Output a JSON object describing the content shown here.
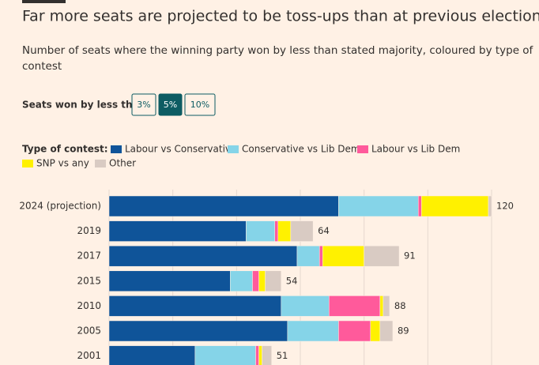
{
  "chart_data": {
    "type": "stacked-bar-horizontal",
    "title": "Far more seats are projected to be toss-ups than at previous elections",
    "subtitle_lines": [
      "Number of seats where the winning party won by less than stated majority, coloured by type of",
      "contest"
    ],
    "control": {
      "label": "Seats won by less than:",
      "options": [
        "3%",
        "5%",
        "10%"
      ],
      "selected": 1
    },
    "legend_title": "Type of contest:",
    "categories": [
      "2024 (projection)",
      "2019",
      "2017",
      "2015",
      "2010",
      "2005",
      "2001"
    ],
    "series": [
      {
        "name": "Labour vs Conservative",
        "color": "#0f5499",
        "values": [
          72,
          43,
          59,
          38,
          54,
          56,
          27
        ]
      },
      {
        "name": "Conservative vs Lib Dem",
        "color": "#85d4e8",
        "values": [
          25,
          9,
          7,
          7,
          15,
          16,
          19
        ]
      },
      {
        "name": "Labour vs Lib Dem",
        "color": "#ff5a9b",
        "values": [
          1,
          1,
          1,
          2,
          16,
          10,
          1
        ]
      },
      {
        "name": "SNP vs any",
        "color": "#fff100",
        "values": [
          21,
          4,
          13,
          2,
          1,
          3,
          1
        ]
      },
      {
        "name": "Other",
        "color": "#d9cbc3",
        "values": [
          1,
          7,
          11,
          5,
          2,
          4,
          3
        ]
      }
    ],
    "totals": [
      120,
      64,
      91,
      54,
      88,
      89,
      51
    ],
    "xlim": [
      0,
      120
    ],
    "xticks": [
      0,
      20,
      40,
      60,
      80,
      100,
      120
    ],
    "grid": true
  }
}
